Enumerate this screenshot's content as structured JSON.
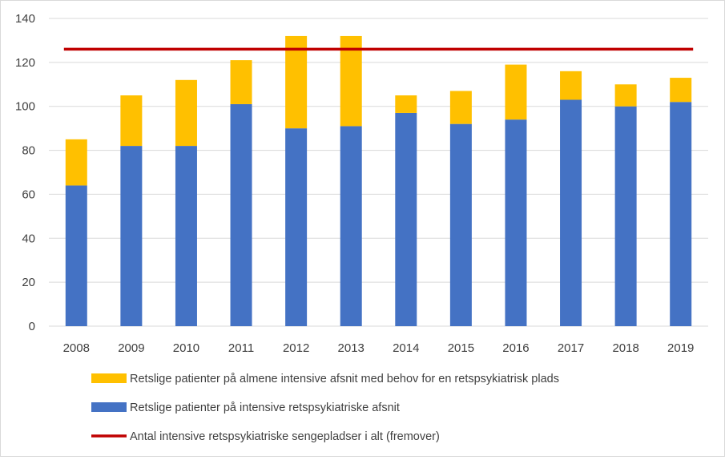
{
  "chart_data": {
    "type": "bar",
    "stacked": true,
    "categories": [
      "2008",
      "2009",
      "2010",
      "2011",
      "2012",
      "2013",
      "2014",
      "2015",
      "2016",
      "2017",
      "2018",
      "2019"
    ],
    "series": [
      {
        "name": "Retslige patienter på intensive retspsykiatriske afsnit",
        "color": "#4472c4",
        "values": [
          64,
          82,
          82,
          101,
          90,
          91,
          97,
          92,
          94,
          103,
          100,
          102
        ]
      },
      {
        "name": "Retslige patienter på almene intensive afsnit med behov for en retspsykiatrisk plads",
        "color": "#ffc000",
        "values": [
          21,
          23,
          30,
          20,
          42,
          41,
          8,
          15,
          25,
          13,
          10,
          11
        ]
      }
    ],
    "line": {
      "name": "Antal intensive retspsykiatriske sengepladser i alt (fremover)",
      "color": "#c00000",
      "value": 126
    },
    "ylim": [
      0,
      140
    ],
    "yticks": [
      "0",
      "20",
      "40",
      "60",
      "80",
      "100",
      "120",
      "140"
    ],
    "grid": true,
    "legend_position": "bottom"
  }
}
